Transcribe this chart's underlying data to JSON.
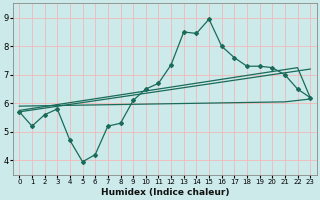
{
  "title": "",
  "xlabel": "Humidex (Indice chaleur)",
  "ylabel": "",
  "bg_color": "#cceaea",
  "grid_color": "#f0b8b8",
  "line_color": "#1a6b5a",
  "xlim": [
    -0.5,
    23.5
  ],
  "ylim": [
    3.5,
    9.5
  ],
  "xticks": [
    0,
    1,
    2,
    3,
    4,
    5,
    6,
    7,
    8,
    9,
    10,
    11,
    12,
    13,
    14,
    15,
    16,
    17,
    18,
    19,
    20,
    21,
    22,
    23
  ],
  "yticks": [
    4,
    5,
    6,
    7,
    8,
    9
  ],
  "humidex_y": [
    5.7,
    5.2,
    5.6,
    5.8,
    4.7,
    3.95,
    4.2,
    5.2,
    5.3,
    6.1,
    6.5,
    6.7,
    7.35,
    8.5,
    8.45,
    8.95,
    8.0,
    7.6,
    7.3,
    7.3,
    7.25,
    7.0,
    6.5,
    6.2
  ],
  "trend1_x": [
    0,
    23
  ],
  "trend1_y": [
    5.7,
    7.2
  ],
  "trend2_x": [
    0,
    22,
    23
  ],
  "trend2_y": [
    5.75,
    7.25,
    6.2
  ],
  "flat_line_x": [
    0,
    21,
    23
  ],
  "flat_line_y": [
    5.9,
    6.05,
    6.15
  ]
}
